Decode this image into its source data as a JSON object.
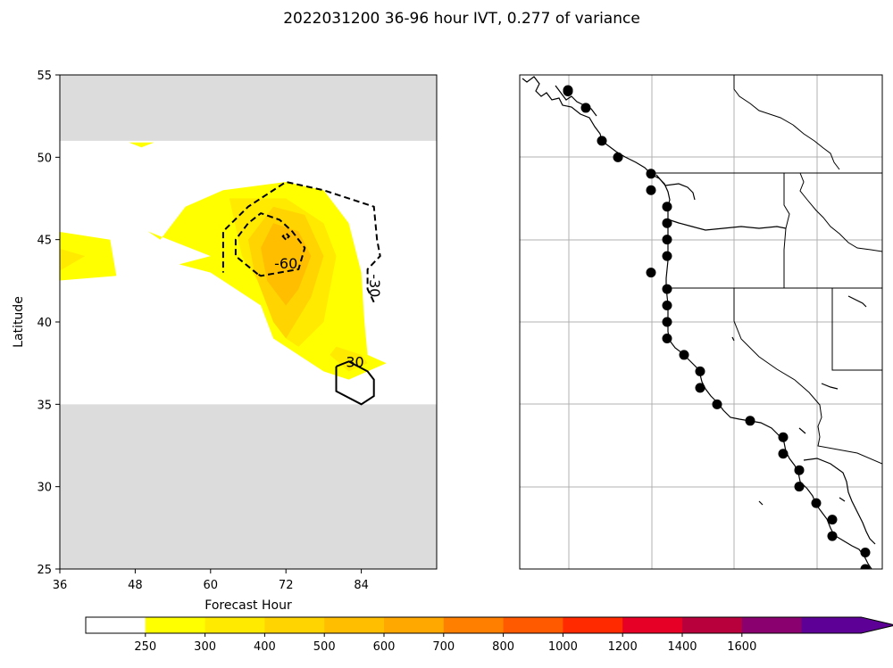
{
  "title": "2022031200 36-96 hour IVT, 0.277 of variance",
  "colors": {
    "missing_band": "#dcdcdc",
    "contour_line": "#000000",
    "grid": "#b0b0b0",
    "markers": "#000000"
  },
  "chart_data": [
    {
      "type": "contour",
      "xlabel": "Forecast Hour",
      "ylabel": "Latitude",
      "xlim": [
        36,
        96
      ],
      "ylim": [
        25,
        55
      ],
      "xticks": [
        36,
        48,
        60,
        72,
        84
      ],
      "yticks": [
        25,
        30,
        35,
        40,
        45,
        50,
        55
      ],
      "grid": false,
      "missing_data_bands_lat": [
        [
          25,
          35
        ],
        [
          51,
          55
        ]
      ],
      "filled_levels": [
        {
          "level": 250,
          "color": "#ffff00",
          "polygons": [
            [
              [
                35.5,
                45.5
              ],
              [
                44,
                45
              ],
              [
                45,
                42.8
              ],
              [
                35.5,
                42.5
              ]
            ],
            [
              [
                47,
                50.9
              ],
              [
                49,
                50.6
              ],
              [
                51,
                50.9
              ]
            ],
            [
              [
                52,
                45
              ],
              [
                56,
                47
              ],
              [
                62,
                48
              ],
              [
                72,
                48.5
              ],
              [
                78,
                48
              ],
              [
                82,
                46
              ],
              [
                84,
                43
              ],
              [
                84.5,
                40
              ],
              [
                85,
                38
              ],
              [
                88,
                37.5
              ],
              [
                85,
                37
              ],
              [
                82,
                36.5
              ],
              [
                78,
                37
              ],
              [
                70,
                39
              ],
              [
                68,
                41
              ],
              [
                60,
                43
              ],
              [
                55,
                43.5
              ],
              [
                60,
                44
              ],
              [
                50,
                45.5
              ]
            ]
          ]
        },
        {
          "level": 300,
          "color": "#ffea00",
          "polygons": [
            [
              [
                35.5,
                44.5
              ],
              [
                40,
                44
              ],
              [
                35.5,
                43
              ]
            ],
            [
              [
                80,
                38.5
              ],
              [
                84,
                38
              ],
              [
                85,
                37.5
              ],
              [
                82,
                37
              ],
              [
                79,
                38
              ]
            ],
            [
              [
                63,
                47.5
              ],
              [
                72,
                47.5
              ],
              [
                78,
                46
              ],
              [
                80,
                44
              ],
              [
                78,
                40
              ],
              [
                74,
                38.5
              ],
              [
                72,
                39
              ],
              [
                70,
                41
              ],
              [
                65,
                44
              ]
            ]
          ]
        },
        {
          "level": 400,
          "color": "#ffd400",
          "polygons": [
            [
              [
                66,
                45
              ],
              [
                70,
                47
              ],
              [
                75,
                46.5
              ],
              [
                78,
                44
              ],
              [
                76,
                41.5
              ],
              [
                72,
                39
              ],
              [
                70,
                40
              ],
              [
                67,
                43
              ]
            ]
          ]
        },
        {
          "level": 500,
          "color": "#ffbe00",
          "polygons": [
            [
              [
                68,
                44.5
              ],
              [
                70,
                46
              ],
              [
                74,
                45.5
              ],
              [
                76,
                44
              ],
              [
                74,
                42
              ],
              [
                72,
                41
              ],
              [
                69,
                42.5
              ]
            ]
          ]
        }
      ],
      "contour_lines": [
        {
          "level": -30,
          "style": "dashed",
          "label": "-30",
          "path": [
            [
              86,
              41.2
            ],
            [
              85,
              42
            ],
            [
              85,
              43.2
            ],
            [
              87,
              44
            ],
            [
              86.5,
              45
            ],
            [
              86,
              47
            ],
            [
              78,
              48
            ],
            [
              72,
              48.5
            ],
            [
              66,
              47
            ],
            [
              62,
              45.5
            ],
            [
              62,
              43
            ]
          ]
        },
        {
          "level": -60,
          "style": "dashed",
          "label": "-60",
          "path": [
            [
              67.5,
              42.9
            ],
            [
              64,
              44
            ],
            [
              64,
              45
            ],
            [
              66,
              46
            ],
            [
              68,
              46.6
            ],
            [
              71,
              46.2
            ],
            [
              73,
              45.5
            ],
            [
              75,
              44.5
            ],
            [
              74,
              43.2
            ],
            [
              68,
              42.8
            ],
            [
              67.5,
              42.9
            ]
          ]
        },
        {
          "level": -90,
          "style": "dashed",
          "path": [
            [
              72,
              45
            ],
            [
              71.5,
              45.2
            ],
            [
              72,
              45.4
            ],
            [
              72.5,
              45.2
            ],
            [
              72,
              45
            ]
          ]
        },
        {
          "level": 30,
          "style": "solid",
          "label": "30",
          "path": [
            [
              80,
              37.3
            ],
            [
              82,
              37.6
            ],
            [
              85,
              37
            ],
            [
              86,
              36.5
            ],
            [
              86,
              35.5
            ],
            [
              84,
              35
            ],
            [
              80,
              35.8
            ],
            [
              80,
              36.5
            ],
            [
              80,
              37.3
            ]
          ]
        }
      ]
    },
    {
      "type": "map",
      "region": "US West Coast",
      "grid": true,
      "point_markers_lat": [
        55,
        54,
        53,
        51,
        50,
        49,
        48,
        47,
        46,
        45,
        44,
        43,
        42,
        41,
        40,
        39,
        38,
        37,
        36,
        35,
        34,
        33,
        32,
        31,
        30,
        29,
        28,
        27,
        26,
        25
      ]
    }
  ],
  "colorbar": {
    "tick_labels": [
      "250",
      "300",
      "400",
      "500",
      "600",
      "700",
      "800",
      "1000",
      "1200",
      "1400",
      "1600"
    ],
    "colors": [
      "#ffffff",
      "#ffff00",
      "#ffea00",
      "#ffd400",
      "#ffbe00",
      "#ffa800",
      "#ff8000",
      "#ff5a00",
      "#ff2a00",
      "#e60026",
      "#b8003c",
      "#8a006e",
      "#5c0096"
    ],
    "extend": "max"
  }
}
